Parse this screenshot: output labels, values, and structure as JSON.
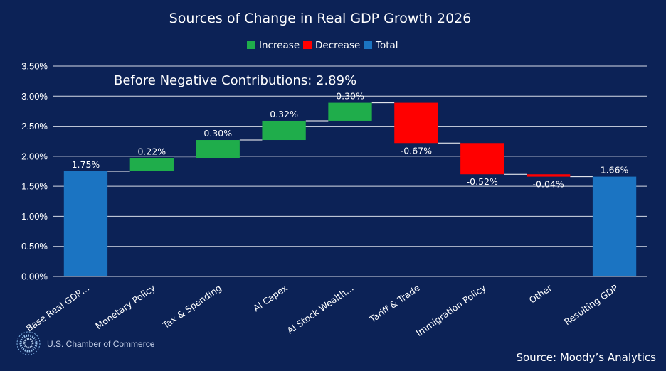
{
  "chart_data": {
    "type": "waterfall",
    "title": "Sources of Change in Real GDP Growth 2026",
    "legend": [
      "Increase",
      "Decrease",
      "Total"
    ],
    "categories": [
      "Base Real GDP…",
      "Monetary Policy",
      "Tax & Spending",
      "AI Capex",
      "AI Stock Wealth…",
      "Tariff & Trade",
      "Immigration Policy",
      "Other",
      "Resulting GDP"
    ],
    "values": [
      1.75,
      0.22,
      0.3,
      0.32,
      0.3,
      -0.67,
      -0.52,
      -0.04,
      1.66
    ],
    "kinds": [
      "total",
      "increase",
      "increase",
      "increase",
      "increase",
      "decrease",
      "decrease",
      "decrease",
      "total"
    ],
    "labels": [
      "1.75%",
      "0.22%",
      "0.30%",
      "0.32%",
      "0.30%",
      "-0.67%",
      "-0.52%",
      "-0.04%",
      "1.66%"
    ],
    "yticks": [
      "0.00%",
      "0.50%",
      "1.00%",
      "1.50%",
      "2.00%",
      "2.50%",
      "3.00%",
      "3.50%"
    ],
    "ylim": [
      0,
      3.5
    ],
    "annotation": "Before Negative Contributions: 2.89%",
    "colors": {
      "increase": "#1fad4b",
      "decrease": "#ff0000",
      "total": "#1b74c2",
      "background": "#0c2256",
      "grid": "#d6dbe6"
    }
  },
  "footer": {
    "source": "Source: Moody’s Analytics",
    "brand": "U.S. Chamber of Commerce"
  }
}
